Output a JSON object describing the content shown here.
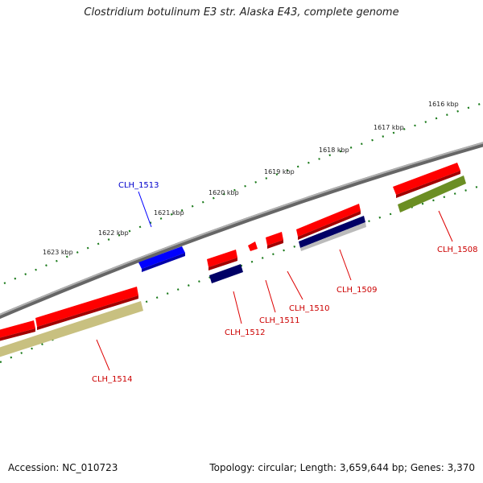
{
  "title": "Clostridium botulinum E3 str. Alaska E43, complete genome",
  "footer": {
    "accession": "Accession: NC_010723",
    "topology": "Topology: circular; Length: 3,659,644 bp; Genes: 3,370"
  },
  "colors": {
    "backbone": "#8a8a8a",
    "tick": "#1a7a1a",
    "cds": "#ff0000",
    "blue_gene": "#0000ff",
    "navy_gene": "#000066",
    "olive_gene": "#6b8e23",
    "khaki_gene": "#c8c080",
    "label_red": "#cc0000",
    "label_blue": "#0000cc"
  },
  "scale_labels": [
    "1616 kbp",
    "1617 kbp",
    "1618 kbp",
    "1619 kbp",
    "1620 kbp",
    "1621 kbp",
    "1622 kbp",
    "1623 kbp"
  ],
  "gene_labels": [
    {
      "text": "CLH_1513",
      "color": "blue"
    },
    {
      "text": "CLH_1508",
      "color": "red"
    },
    {
      "text": "CLH_1509",
      "color": "red"
    },
    {
      "text": "CLH_1510",
      "color": "red"
    },
    {
      "text": "CLH_1511",
      "color": "red"
    },
    {
      "text": "CLH_1512",
      "color": "red"
    },
    {
      "text": "CLH_1514",
      "color": "red"
    }
  ]
}
